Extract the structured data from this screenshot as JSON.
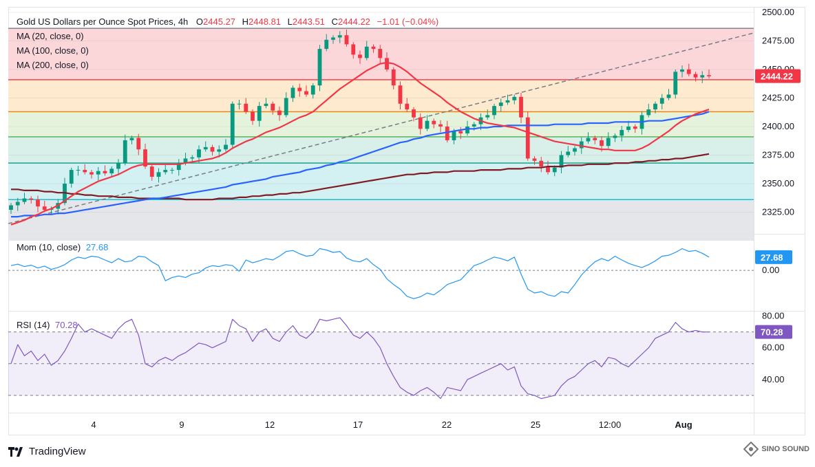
{
  "header": {
    "symbol": "Gold US Dollars per Ounce Spot Prices, 4h",
    "open_label": "O",
    "open": "2445.27",
    "high_label": "H",
    "high": "2448.81",
    "low_label": "L",
    "low": "2443.51",
    "close_label": "C",
    "close": "2444.22",
    "change": "−1.01 (−0.04%)"
  },
  "ma_legend": [
    "MA (20, close, 0)",
    "MA (100, close, 0)",
    "MA (200, close, 0)"
  ],
  "mom_legend": {
    "label": "Mom (10, close)",
    "value": "27.68"
  },
  "rsi_legend": {
    "label": "RSI (14)",
    "value": "70.28"
  },
  "brand": "TradingView",
  "watermark": "SINO SOUND",
  "colors": {
    "up": "#089981",
    "down": "#f23645",
    "ma20": "#f23645",
    "ma100": "#2962ff",
    "ma200": "#801922",
    "mom": "#2196f3",
    "rsi": "#7e57c2",
    "trend": "#787b86"
  },
  "chart_data": [
    {
      "type": "candlestick",
      "title": "Gold US Dollars per Ounce Spot Prices, 4h",
      "ylim": [
        2306,
        2500
      ],
      "y_ticks": [
        "2500.00",
        "2475.00",
        "2450.00",
        "2425.00",
        "2400.00",
        "2375.00",
        "2350.00",
        "2325.00"
      ],
      "x_ticks": [
        "4",
        "9",
        "12",
        "17",
        "22",
        "25",
        "12:00",
        "Aug"
      ],
      "last_price": "2444.22",
      "close": [
        2331,
        2334,
        2337,
        2336,
        2330,
        2327,
        2328,
        2333,
        2350,
        2362,
        2362,
        2360,
        2358,
        2361,
        2359,
        2363,
        2368,
        2388,
        2390,
        2380,
        2365,
        2356,
        2360,
        2362,
        2362,
        2368,
        2372,
        2373,
        2380,
        2382,
        2378,
        2380,
        2384,
        2420,
        2420,
        2413,
        2405,
        2418,
        2420,
        2414,
        2410,
        2425,
        2434,
        2431,
        2428,
        2436,
        2468,
        2476,
        2478,
        2480,
        2472,
        2463,
        2460,
        2470,
        2468,
        2460,
        2450,
        2436,
        2420,
        2415,
        2408,
        2398,
        2405,
        2402,
        2400,
        2388,
        2396,
        2394,
        2400,
        2402,
        2408,
        2410,
        2418,
        2421,
        2423,
        2426,
        2408,
        2372,
        2370,
        2365,
        2360,
        2364,
        2375,
        2378,
        2381,
        2387,
        2390,
        2388,
        2383,
        2390,
        2392,
        2397,
        2400,
        2398,
        2410,
        2415,
        2420,
        2425,
        2428,
        2448,
        2450,
        2446,
        2443,
        2445,
        2444
      ],
      "ma20": [
        2314,
        2316,
        2318,
        2321,
        2323,
        2326,
        2328,
        2331,
        2335,
        2339,
        2343,
        2346,
        2349,
        2352,
        2354,
        2356,
        2358,
        2361,
        2364,
        2366,
        2367,
        2367,
        2367,
        2367,
        2367,
        2367,
        2368,
        2369,
        2370,
        2371,
        2372,
        2374,
        2377,
        2381,
        2384,
        2387,
        2389,
        2392,
        2395,
        2397,
        2399,
        2402,
        2405,
        2408,
        2410,
        2413,
        2418,
        2423,
        2428,
        2433,
        2437,
        2441,
        2445,
        2449,
        2452,
        2455,
        2456,
        2455,
        2452,
        2448,
        2443,
        2438,
        2434,
        2430,
        2426,
        2421,
        2417,
        2413,
        2410,
        2407,
        2405,
        2403,
        2402,
        2401,
        2400,
        2399,
        2397,
        2395,
        2393,
        2391,
        2389,
        2387,
        2386,
        2385,
        2384,
        2383,
        2382,
        2381,
        2380,
        2380,
        2379,
        2379,
        2379,
        2379,
        2381,
        2384,
        2388,
        2392,
        2396,
        2401,
        2405,
        2408,
        2411,
        2413,
        2415
      ],
      "ma100": [
        2321,
        2321,
        2322,
        2322,
        2322,
        2323,
        2323,
        2324,
        2324,
        2325,
        2326,
        2327,
        2328,
        2329,
        2330,
        2331,
        2332,
        2333,
        2334,
        2335,
        2336,
        2337,
        2337,
        2338,
        2339,
        2340,
        2341,
        2342,
        2343,
        2344,
        2345,
        2346,
        2347,
        2349,
        2350,
        2351,
        2352,
        2353,
        2354,
        2356,
        2357,
        2358,
        2359,
        2360,
        2362,
        2363,
        2364,
        2366,
        2367,
        2369,
        2370,
        2372,
        2374,
        2376,
        2378,
        2380,
        2382,
        2384,
        2386,
        2387,
        2389,
        2390,
        2392,
        2393,
        2394,
        2395,
        2396,
        2397,
        2398,
        2398,
        2399,
        2399,
        2400,
        2400,
        2401,
        2401,
        2401,
        2401,
        2401,
        2401,
        2401,
        2402,
        2402,
        2402,
        2402,
        2402,
        2403,
        2403,
        2403,
        2403,
        2404,
        2404,
        2404,
        2404,
        2404,
        2405,
        2405,
        2405,
        2406,
        2407,
        2408,
        2409,
        2410,
        2411,
        2413
      ],
      "ma200": [
        2345,
        2345,
        2344,
        2344,
        2344,
        2343,
        2343,
        2342,
        2342,
        2341,
        2341,
        2340,
        2340,
        2339,
        2339,
        2339,
        2338,
        2338,
        2338,
        2337,
        2337,
        2337,
        2337,
        2337,
        2337,
        2337,
        2336,
        2336,
        2336,
        2336,
        2336,
        2337,
        2337,
        2337,
        2338,
        2338,
        2339,
        2339,
        2340,
        2340,
        2341,
        2341,
        2342,
        2342,
        2343,
        2344,
        2345,
        2346,
        2347,
        2348,
        2349,
        2350,
        2351,
        2352,
        2353,
        2354,
        2355,
        2356,
        2357,
        2358,
        2358,
        2359,
        2359,
        2360,
        2360,
        2360,
        2361,
        2361,
        2361,
        2361,
        2362,
        2362,
        2362,
        2362,
        2363,
        2363,
        2363,
        2364,
        2364,
        2364,
        2365,
        2365,
        2365,
        2366,
        2366,
        2366,
        2367,
        2367,
        2367,
        2367,
        2368,
        2368,
        2368,
        2369,
        2369,
        2370,
        2370,
        2371,
        2371,
        2372,
        2372,
        2373,
        2374,
        2375,
        2376
      ]
    },
    {
      "type": "line",
      "title": "Mom (10, close)",
      "last_value": "27.68",
      "zero_label": "0.00",
      "values": [
        10,
        13,
        8,
        11,
        5,
        9,
        2,
        6,
        12,
        22,
        28,
        25,
        30,
        28,
        22,
        16,
        25,
        18,
        20,
        30,
        28,
        18,
        10,
        -22,
        -15,
        -12,
        -15,
        -8,
        -5,
        5,
        10,
        8,
        12,
        10,
        -2,
        22,
        16,
        20,
        25,
        22,
        30,
        40,
        42,
        35,
        30,
        32,
        46,
        43,
        38,
        40,
        26,
        20,
        18,
        25,
        12,
        2,
        -18,
        -30,
        -40,
        -55,
        -60,
        -56,
        -48,
        -52,
        -42,
        -30,
        -25,
        -20,
        -5,
        10,
        15,
        22,
        28,
        25,
        20,
        28,
        -8,
        -40,
        -48,
        -45,
        -52,
        -55,
        -45,
        -48,
        -30,
        -10,
        5,
        18,
        25,
        20,
        30,
        22,
        15,
        10,
        6,
        12,
        20,
        30,
        32,
        38,
        46,
        40,
        42,
        36,
        28
      ],
      "ylim": [
        -80,
        70
      ]
    },
    {
      "type": "line",
      "title": "RSI (14)",
      "last_value": "70.28",
      "y_ticks": [
        "80.00",
        "60.00",
        "40.00"
      ],
      "bands": [
        70,
        50,
        30
      ],
      "values": [
        50,
        62,
        55,
        58,
        52,
        56,
        49,
        52,
        58,
        66,
        75,
        70,
        72,
        70,
        68,
        66,
        72,
        76,
        78,
        68,
        50,
        48,
        52,
        54,
        52,
        55,
        57,
        60,
        63,
        62,
        60,
        62,
        64,
        78,
        74,
        72,
        64,
        70,
        72,
        66,
        64,
        70,
        74,
        68,
        66,
        70,
        78,
        77,
        78,
        79,
        74,
        68,
        66,
        70,
        66,
        60,
        50,
        42,
        35,
        32,
        30,
        33,
        35,
        32,
        28,
        35,
        34,
        33,
        40,
        42,
        44,
        46,
        48,
        50,
        46,
        48,
        36,
        31,
        30,
        28,
        29,
        30,
        36,
        40,
        42,
        46,
        50,
        52,
        48,
        54,
        53,
        50,
        48,
        52,
        56,
        60,
        66,
        68,
        70,
        76,
        72,
        70,
        71,
        70,
        70
      ],
      "ylim": [
        20,
        82
      ]
    }
  ]
}
